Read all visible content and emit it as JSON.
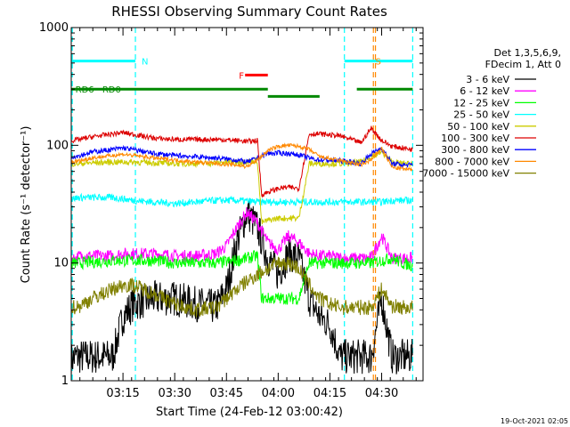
{
  "chart_data": {
    "type": "line",
    "title": "RHESSI Observing Summary Count Rates",
    "ylabel": "Count Rate (s⁻¹ detector⁻¹)",
    "xlabel": "Start Time (24-Feb-12 03:00:42)",
    "timestamp": "19-Oct-2021 02:05",
    "yscale": "log",
    "ylim": [
      1,
      1000
    ],
    "xlim": [
      3.0,
      4.7
    ],
    "y_ticks": [
      {
        "value": 1,
        "label": "1"
      },
      {
        "value": 10,
        "label": "10"
      },
      {
        "value": 100,
        "label": "100"
      },
      {
        "value": 1000,
        "label": "1000"
      }
    ],
    "x_ticks": [
      {
        "value": 3.25,
        "label": "03:15"
      },
      {
        "value": 3.5,
        "label": "03:30"
      },
      {
        "value": 3.75,
        "label": "03:45"
      },
      {
        "value": 4.0,
        "label": "04:00"
      },
      {
        "value": 4.25,
        "label": "04:15"
      },
      {
        "value": 4.5,
        "label": "04:30"
      }
    ],
    "legend_header": [
      "Det 1,3,5,6,9,",
      "FDecim 1, Att 0"
    ],
    "legend_position": "right",
    "series": [
      {
        "name": "3 - 6 keV",
        "color": "#000000",
        "x": [
          3.0,
          3.02,
          3.04,
          3.2,
          3.25,
          3.3,
          3.4,
          3.5,
          3.6,
          3.7,
          3.75,
          3.8,
          3.85,
          3.9,
          3.95,
          4.0,
          4.05,
          4.1,
          4.15,
          4.2,
          4.25,
          4.3,
          4.4,
          4.45,
          4.5,
          4.55,
          4.6,
          4.65
        ],
        "y": [
          1.5,
          1.6,
          1.6,
          1.6,
          3.5,
          4.5,
          5,
          5,
          4.5,
          4.2,
          6,
          15,
          27,
          20,
          11,
          8,
          12,
          11,
          5,
          3.5,
          3.0,
          1.6,
          1.6,
          1.6,
          5,
          1.6,
          1.6,
          1.6
        ]
      },
      {
        "name": "6 - 12 keV",
        "color": "#ff00ff",
        "x": [
          3.0,
          3.02,
          3.04,
          3.2,
          3.25,
          3.3,
          3.4,
          3.5,
          3.6,
          3.7,
          3.75,
          3.8,
          3.85,
          3.9,
          3.95,
          4.0,
          4.05,
          4.1,
          4.15,
          4.2,
          4.25,
          4.3,
          4.4,
          4.45,
          4.5,
          4.55,
          4.6,
          4.65
        ],
        "y": [
          11,
          11,
          11.5,
          11.5,
          12,
          12,
          12,
          11.5,
          11.5,
          12,
          14,
          20,
          27,
          22,
          15,
          13,
          17,
          15,
          12,
          11.5,
          11.5,
          11,
          11,
          11,
          17,
          11,
          11,
          11
        ]
      },
      {
        "name": "12 - 25 keV",
        "color": "#00ff00",
        "x": [
          3.0,
          3.04,
          3.2,
          3.3,
          3.4,
          3.5,
          3.6,
          3.7,
          3.8,
          3.85,
          3.9,
          3.92,
          3.95,
          4.0,
          4.05,
          4.1,
          4.15,
          4.2,
          4.3,
          4.4,
          4.45,
          4.5,
          4.55,
          4.6,
          4.65
        ],
        "y": [
          10,
          10,
          10.5,
          10.5,
          10.5,
          10,
          10,
          10,
          10.5,
          11,
          11.5,
          5,
          5,
          5,
          5,
          5,
          10,
          10,
          10,
          10,
          10,
          10.5,
          11,
          10,
          9.5
        ]
      },
      {
        "name": "25 - 50 keV",
        "color": "#00ffff",
        "x": [
          3.0,
          3.04,
          3.1,
          3.2,
          3.3,
          3.4,
          3.5,
          3.6,
          3.7,
          3.8,
          3.9,
          4.0,
          4.05,
          4.1,
          4.15,
          4.2,
          4.3,
          4.4,
          4.45,
          4.5,
          4.55,
          4.6,
          4.65
        ],
        "y": [
          35,
          36,
          36,
          36,
          34,
          33,
          32,
          33,
          34,
          34,
          33,
          33,
          33,
          33,
          33,
          33,
          33,
          33,
          33,
          33,
          34,
          34,
          34
        ]
      },
      {
        "name": "50 - 100 keV",
        "color": "#cccc00",
        "x": [
          3.0,
          3.04,
          3.1,
          3.2,
          3.3,
          3.4,
          3.5,
          3.6,
          3.7,
          3.8,
          3.9,
          3.92,
          3.95,
          4.0,
          4.05,
          4.1,
          4.15,
          4.2,
          4.3,
          4.4,
          4.45,
          4.5,
          4.55,
          4.6,
          4.65
        ],
        "y": [
          70,
          70,
          71,
          72,
          72,
          71,
          70,
          70,
          71,
          72,
          74,
          22,
          23,
          24,
          24,
          24,
          70,
          70,
          70,
          72,
          80,
          88,
          72,
          70,
          70
        ]
      },
      {
        "name": "100 - 300 keV",
        "color": "#dd0000",
        "x": [
          3.0,
          3.04,
          3.1,
          3.2,
          3.25,
          3.3,
          3.4,
          3.5,
          3.6,
          3.7,
          3.8,
          3.85,
          3.9,
          3.92,
          3.95,
          4.0,
          4.05,
          4.1,
          4.15,
          4.2,
          4.3,
          4.4,
          4.45,
          4.5,
          4.55,
          4.6,
          4.65
        ],
        "y": [
          110,
          112,
          118,
          125,
          128,
          124,
          115,
          112,
          112,
          112,
          110,
          108,
          110,
          38,
          40,
          43,
          44,
          43,
          125,
          125,
          120,
          105,
          140,
          110,
          98,
          95,
          92
        ]
      },
      {
        "name": "300 - 800 keV",
        "color": "#0000ff",
        "x": [
          3.0,
          3.04,
          3.1,
          3.2,
          3.25,
          3.3,
          3.4,
          3.5,
          3.6,
          3.7,
          3.8,
          3.85,
          3.9,
          3.95,
          4.0,
          4.05,
          4.1,
          4.15,
          4.2,
          4.3,
          4.4,
          4.45,
          4.5,
          4.55,
          4.6,
          4.65
        ],
        "y": [
          80,
          82,
          88,
          92,
          95,
          92,
          85,
          82,
          80,
          78,
          75,
          72,
          78,
          85,
          86,
          85,
          83,
          78,
          75,
          74,
          70,
          85,
          95,
          70,
          68,
          68
        ]
      },
      {
        "name": "800 - 7000 keV",
        "color": "#ff8800",
        "x": [
          3.0,
          3.04,
          3.1,
          3.2,
          3.25,
          3.3,
          3.4,
          3.5,
          3.6,
          3.7,
          3.8,
          3.85,
          3.9,
          3.95,
          4.0,
          4.05,
          4.1,
          4.15,
          4.2,
          4.3,
          4.4,
          4.45,
          4.5,
          4.55,
          4.6,
          4.65
        ],
        "y": [
          72,
          74,
          78,
          82,
          84,
          82,
          78,
          75,
          72,
          70,
          68,
          66,
          75,
          90,
          98,
          100,
          98,
          92,
          80,
          74,
          68,
          75,
          95,
          65,
          63,
          62
        ]
      },
      {
        "name": "7000 - 15000 keV",
        "color": "#808000",
        "x": [
          3.0,
          3.04,
          3.1,
          3.2,
          3.25,
          3.3,
          3.4,
          3.5,
          3.6,
          3.7,
          3.75,
          3.8,
          3.85,
          3.9,
          3.95,
          4.0,
          4.05,
          4.1,
          4.15,
          4.2,
          4.25,
          4.3,
          4.4,
          4.45,
          4.5,
          4.55,
          4.6,
          4.65
        ],
        "y": [
          4.2,
          4.3,
          5,
          6,
          6.5,
          6.5,
          5.5,
          4.5,
          4,
          4.2,
          5,
          6,
          7,
          8,
          9,
          10,
          10,
          9,
          6.5,
          5,
          4.5,
          4.2,
          4.2,
          4.2,
          6,
          4.3,
          4.2,
          4.2
        ]
      }
    ],
    "state_bars": [
      {
        "label": "N",
        "color": "#00ffff",
        "y": 520,
        "segments": [
          [
            3.0,
            3.31
          ],
          [
            4.32,
            4.65
          ]
        ],
        "label_position": "left",
        "label_x": 3.34
      },
      {
        "label": "S",
        "color": "#ff8800",
        "y": 520,
        "segments": [],
        "label_x": 4.47
      },
      {
        "label": "F",
        "color": "#ff0000",
        "y": 395,
        "segments": [
          [
            3.84,
            3.95
          ]
        ],
        "label_x": 3.81
      },
      {
        "label": "RD0",
        "color": "#008800",
        "y": 300,
        "segments": [
          [
            3.0,
            3.95
          ],
          [
            4.38,
            4.65
          ]
        ],
        "label_x": 3.15
      },
      {
        "label": "RD6",
        "color": "#008800",
        "y": 300,
        "segments": [
          [
            3.05,
            3.1
          ]
        ],
        "label_x": 3.02
      },
      {
        "label": "",
        "color": "#008800",
        "y": 260,
        "segments": [
          [
            3.95,
            4.2
          ]
        ]
      }
    ],
    "vertical_markers": [
      {
        "x": 3.005,
        "color": "#00ffff",
        "dash": true
      },
      {
        "x": 3.31,
        "color": "#00ffff",
        "dash": true
      },
      {
        "x": 4.32,
        "color": "#00ffff",
        "dash": true
      },
      {
        "x": 4.65,
        "color": "#00ffff",
        "dash": true
      },
      {
        "x": 4.46,
        "color": "#ff8800",
        "dash": true
      },
      {
        "x": 4.47,
        "color": "#ff8800",
        "dash": true
      }
    ]
  }
}
